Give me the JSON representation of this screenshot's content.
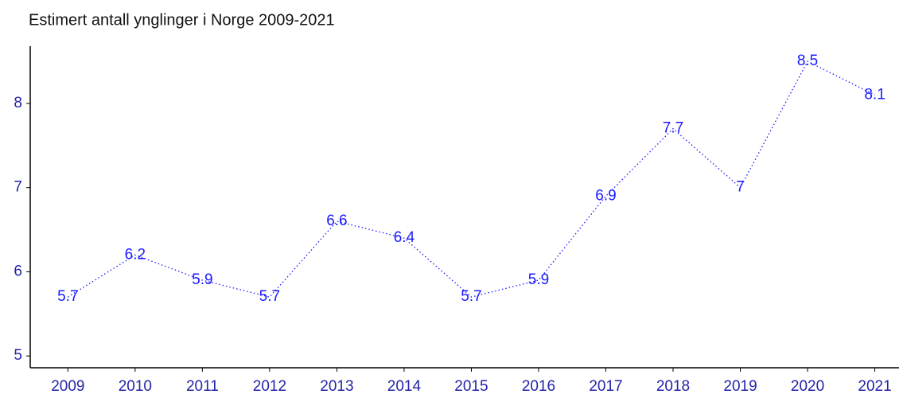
{
  "chart_data": {
    "type": "line",
    "title": "Estimert antall ynglinger i Norge 2009-2021",
    "x": [
      2009,
      2010,
      2011,
      2012,
      2013,
      2014,
      2015,
      2016,
      2017,
      2018,
      2019,
      2020,
      2021
    ],
    "series": [
      {
        "color": "#1a1aff",
        "values": [
          5.7,
          6.2,
          5.9,
          5.7,
          6.6,
          6.4,
          5.7,
          5.9,
          6.9,
          7.7,
          7,
          8.5,
          8.1
        ]
      }
    ],
    "xlim": [
      2008.44,
      2021.36
    ],
    "xticks": [
      2009,
      2010,
      2011,
      2012,
      2013,
      2014,
      2015,
      2016,
      2017,
      2018,
      2019,
      2020,
      2021
    ],
    "ylim": [
      4.86,
      8.68
    ],
    "yticks": [
      5,
      6,
      7,
      8
    ]
  }
}
